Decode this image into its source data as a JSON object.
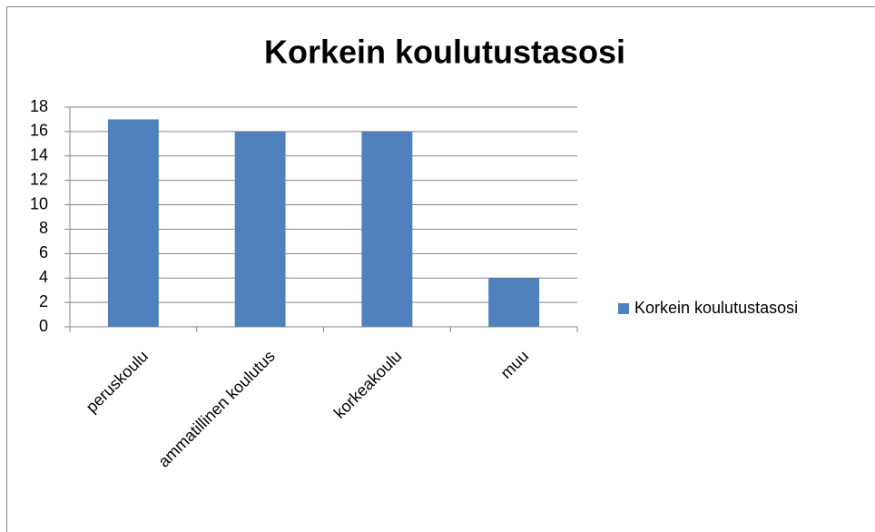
{
  "chart_data": {
    "type": "bar",
    "title": "Korkein koulutustasosi",
    "categories": [
      "peruskoulu",
      "ammatillinen koulutus",
      "korkeakoulu",
      "muu"
    ],
    "series": [
      {
        "name": "Korkein koulutustasosi",
        "color": "#4f81bd",
        "values": [
          17,
          16,
          16,
          4
        ]
      }
    ],
    "ylim": [
      0,
      18
    ],
    "yticks": [
      0,
      2,
      4,
      6,
      8,
      10,
      12,
      14,
      16,
      18
    ],
    "grid": true,
    "legend": "right"
  }
}
